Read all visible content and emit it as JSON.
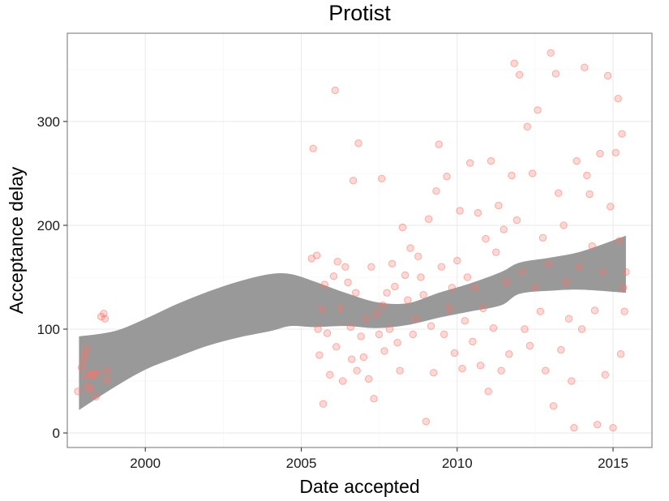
{
  "chart_data": {
    "type": "scatter",
    "title": "Protist",
    "xlabel": "Date accepted",
    "ylabel": "Acceptance delay",
    "x_ticks": [
      "2000",
      "2005",
      "2010",
      "2015"
    ],
    "y_ticks": [
      "0",
      "100",
      "200",
      "300"
    ],
    "xlim": [
      "1997-07-01",
      "2016-04-01"
    ],
    "ylim": [
      -14,
      385
    ],
    "grid": true,
    "theme": "bw",
    "colors": {
      "points": "#F8766D",
      "band": "#999999",
      "grid_major": "#ebebeb",
      "grid_minor": "#f5f5f5",
      "panel_border": "#7f7f7f"
    },
    "series": [
      {
        "type": "scatter",
        "points": [
          [
            "1997-11-01",
            40
          ],
          [
            "1997-12-15",
            63
          ],
          [
            "1998-01-10",
            70
          ],
          [
            "1998-01-20",
            75
          ],
          [
            "1998-02-01",
            55
          ],
          [
            "1998-02-10",
            81
          ],
          [
            "1998-03-01",
            45
          ],
          [
            "1998-03-20",
            42
          ],
          [
            "1998-04-05",
            56
          ],
          [
            "1998-04-20",
            57
          ],
          [
            "1998-05-10",
            55
          ],
          [
            "1998-06-01",
            35
          ],
          [
            "1998-06-20",
            58
          ],
          [
            "1998-08-01",
            112
          ],
          [
            "1998-09-01",
            115
          ],
          [
            "1998-09-15",
            110
          ],
          [
            "1998-10-01",
            51
          ],
          [
            "1998-10-15",
            60
          ],
          [
            "2005-05-01",
            168
          ],
          [
            "2005-05-20",
            274
          ],
          [
            "2005-07-01",
            171
          ],
          [
            "2005-07-15",
            100
          ],
          [
            "2005-08-01",
            75
          ],
          [
            "2005-09-01",
            119
          ],
          [
            "2005-09-15",
            28
          ],
          [
            "2005-10-01",
            143
          ],
          [
            "2005-11-01",
            96
          ],
          [
            "2005-12-01",
            56
          ],
          [
            "2006-01-15",
            151
          ],
          [
            "2006-02-01",
            330
          ],
          [
            "2006-02-15",
            83
          ],
          [
            "2006-03-01",
            165
          ],
          [
            "2006-04-01",
            120
          ],
          [
            "2006-05-01",
            50
          ],
          [
            "2006-06-01",
            160
          ],
          [
            "2006-07-01",
            145
          ],
          [
            "2006-08-01",
            102
          ],
          [
            "2006-08-15",
            71
          ],
          [
            "2006-09-01",
            243
          ],
          [
            "2006-10-01",
            135
          ],
          [
            "2006-10-15",
            60
          ],
          [
            "2006-11-01",
            279
          ],
          [
            "2006-12-01",
            93
          ],
          [
            "2007-01-01",
            73
          ],
          [
            "2007-02-01",
            110
          ],
          [
            "2007-03-01",
            52
          ],
          [
            "2007-04-01",
            160
          ],
          [
            "2007-05-01",
            33
          ],
          [
            "2007-06-01",
            115
          ],
          [
            "2007-07-01",
            95
          ],
          [
            "2007-08-01",
            245
          ],
          [
            "2007-08-15",
            123
          ],
          [
            "2007-09-01",
            79
          ],
          [
            "2007-10-01",
            135
          ],
          [
            "2007-11-01",
            100
          ],
          [
            "2007-12-01",
            163
          ],
          [
            "2008-01-01",
            141
          ],
          [
            "2008-02-01",
            87
          ],
          [
            "2008-03-01",
            60
          ],
          [
            "2008-04-01",
            198
          ],
          [
            "2008-05-01",
            152
          ],
          [
            "2008-06-01",
            128
          ],
          [
            "2008-07-01",
            178
          ],
          [
            "2008-08-01",
            95
          ],
          [
            "2008-09-01",
            110
          ],
          [
            "2008-10-01",
            170
          ],
          [
            "2008-11-01",
            150
          ],
          [
            "2008-12-01",
            133
          ],
          [
            "2009-01-01",
            11
          ],
          [
            "2009-02-01",
            206
          ],
          [
            "2009-03-01",
            103
          ],
          [
            "2009-04-01",
            58
          ],
          [
            "2009-05-01",
            233
          ],
          [
            "2009-06-01",
            278
          ],
          [
            "2009-07-01",
            160
          ],
          [
            "2009-08-01",
            95
          ],
          [
            "2009-09-01",
            247
          ],
          [
            "2009-10-01",
            120
          ],
          [
            "2009-11-01",
            140
          ],
          [
            "2009-12-01",
            77
          ],
          [
            "2010-01-01",
            166
          ],
          [
            "2010-02-01",
            214
          ],
          [
            "2010-03-01",
            62
          ],
          [
            "2010-04-01",
            108
          ],
          [
            "2010-05-01",
            150
          ],
          [
            "2010-06-01",
            260
          ],
          [
            "2010-07-01",
            88
          ],
          [
            "2010-08-01",
            140
          ],
          [
            "2010-09-01",
            212
          ],
          [
            "2010-10-01",
            65
          ],
          [
            "2010-11-01",
            120
          ],
          [
            "2010-12-01",
            187
          ],
          [
            "2011-01-01",
            40
          ],
          [
            "2011-02-01",
            262
          ],
          [
            "2011-03-01",
            101
          ],
          [
            "2011-04-01",
            174
          ],
          [
            "2011-05-01",
            219
          ],
          [
            "2011-06-01",
            60
          ],
          [
            "2011-07-01",
            196
          ],
          [
            "2011-08-01",
            145
          ],
          [
            "2011-09-01",
            76
          ],
          [
            "2011-10-01",
            248
          ],
          [
            "2011-11-01",
            356
          ],
          [
            "2011-12-01",
            205
          ],
          [
            "2012-01-01",
            345
          ],
          [
            "2012-02-01",
            155
          ],
          [
            "2012-03-01",
            100
          ],
          [
            "2012-04-01",
            295
          ],
          [
            "2012-05-01",
            84
          ],
          [
            "2012-06-01",
            250
          ],
          [
            "2012-07-01",
            140
          ],
          [
            "2012-08-01",
            311
          ],
          [
            "2012-09-01",
            117
          ],
          [
            "2012-10-01",
            188
          ],
          [
            "2012-11-01",
            60
          ],
          [
            "2012-12-01",
            163
          ],
          [
            "2013-01-01",
            366
          ],
          [
            "2013-02-01",
            26
          ],
          [
            "2013-03-01",
            346
          ],
          [
            "2013-04-01",
            231
          ],
          [
            "2013-05-01",
            80
          ],
          [
            "2013-06-01",
            200
          ],
          [
            "2013-07-01",
            145
          ],
          [
            "2013-08-01",
            110
          ],
          [
            "2013-09-01",
            50
          ],
          [
            "2013-10-01",
            5
          ],
          [
            "2013-11-01",
            262
          ],
          [
            "2013-12-01",
            160
          ],
          [
            "2014-01-01",
            100
          ],
          [
            "2014-02-01",
            352
          ],
          [
            "2014-03-01",
            248
          ],
          [
            "2014-04-01",
            230
          ],
          [
            "2014-05-01",
            180
          ],
          [
            "2014-06-01",
            118
          ],
          [
            "2014-07-01",
            8
          ],
          [
            "2014-08-01",
            269
          ],
          [
            "2014-09-01",
            155
          ],
          [
            "2014-10-01",
            56
          ],
          [
            "2014-11-01",
            344
          ],
          [
            "2014-12-01",
            218
          ],
          [
            "2015-01-01",
            5
          ],
          [
            "2015-02-01",
            270
          ],
          [
            "2015-03-01",
            322
          ],
          [
            "2015-03-15",
            185
          ],
          [
            "2015-04-01",
            76
          ],
          [
            "2015-04-15",
            288
          ],
          [
            "2015-05-01",
            140
          ],
          [
            "2015-05-15",
            117
          ],
          [
            "2015-06-01",
            155
          ]
        ]
      },
      {
        "type": "ribbon",
        "x": [
          "1997-11-15",
          "1999-01-01",
          "2000-01-01",
          "2001-01-01",
          "2002-01-01",
          "2003-01-01",
          "2004-01-01",
          "2004-09-01",
          "2005-06-01",
          "2006-06-01",
          "2007-06-01",
          "2008-06-01",
          "2009-06-01",
          "2010-06-01",
          "2011-06-01",
          "2012-01-01",
          "2013-01-01",
          "2014-01-01",
          "2015-06-01"
        ],
        "lower": [
          22,
          44,
          61,
          73,
          84,
          92,
          98,
          103,
          102,
          103,
          101,
          104,
          111,
          117,
          123,
          134,
          137,
          138,
          135
        ],
        "upper": [
          93,
          98,
          110,
          124,
          136,
          146,
          153,
          153,
          146,
          135,
          126,
          125,
          135,
          144,
          155,
          164,
          169,
          175,
          190
        ]
      }
    ]
  }
}
